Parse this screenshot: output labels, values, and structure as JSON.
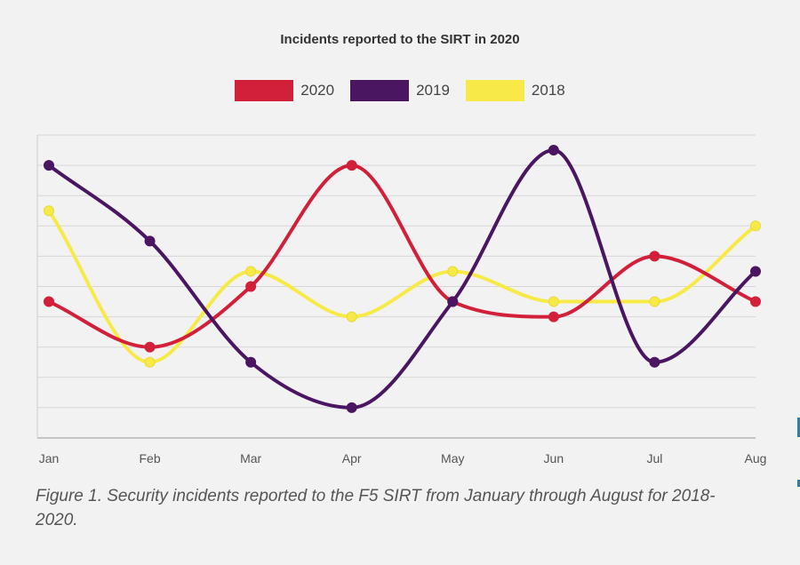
{
  "chart_data": {
    "type": "line",
    "title": "Incidents reported to the SIRT in 2020",
    "categories": [
      "Jan",
      "Feb",
      "Mar",
      "Apr",
      "May",
      "Jun",
      "Jul",
      "Aug"
    ],
    "series": [
      {
        "name": "2020",
        "color": "#d2203a",
        "values": [
          45,
          30,
          50,
          90,
          45,
          40,
          60,
          45
        ]
      },
      {
        "name": "2019",
        "color": "#4a1561",
        "values": [
          90,
          65,
          25,
          10,
          45,
          95,
          25,
          55
        ]
      },
      {
        "name": "2018",
        "color": "#f7ea48",
        "values": [
          75,
          25,
          55,
          40,
          55,
          45,
          45,
          70
        ]
      }
    ],
    "ylim": [
      0,
      100
    ],
    "grid": true,
    "legend_position": "top-center",
    "smooth": true
  },
  "caption": "Figure 1. Security incidents reported to the F5 SIRT from January through August for 2018-2020."
}
